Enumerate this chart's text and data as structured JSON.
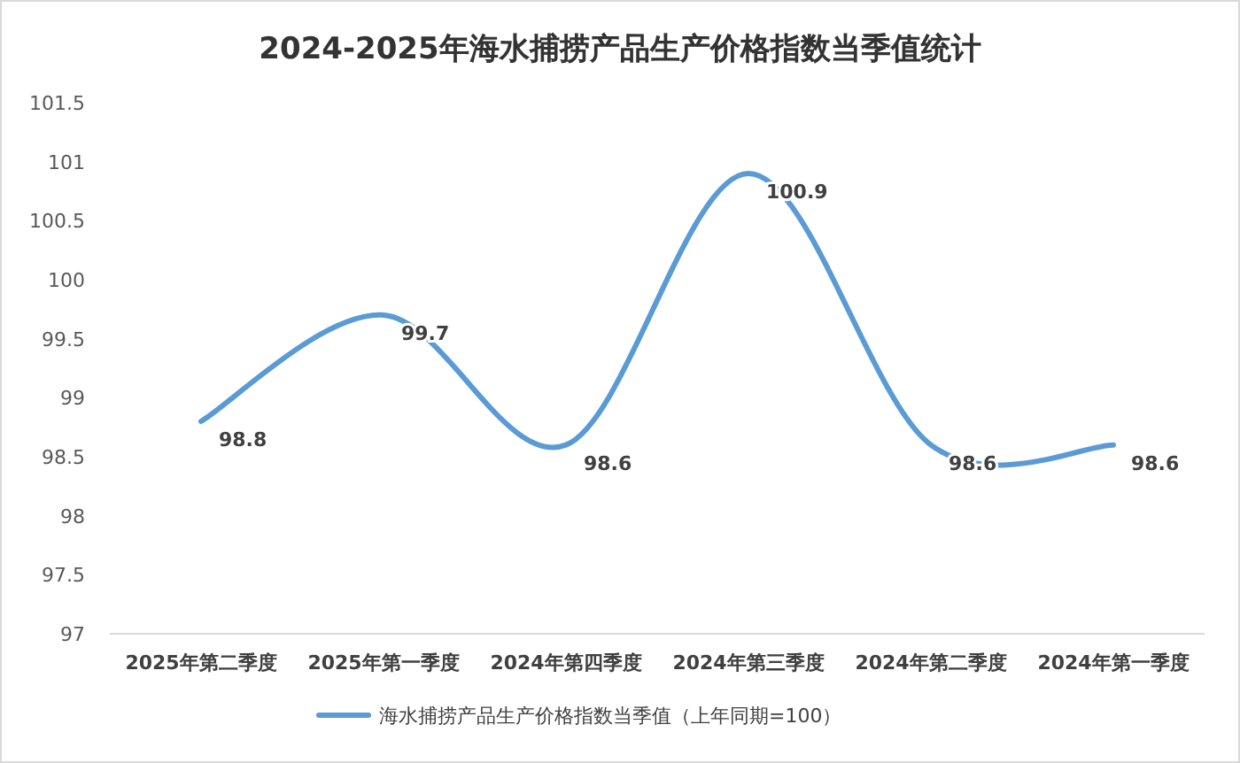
{
  "chart_data": {
    "type": "line",
    "title": "2024-2025年海水捕捞产品生产价格指数当季值统计",
    "categories": [
      "2025年第二季度",
      "2025年第一季度",
      "2024年第四季度",
      "2024年第三季度",
      "2024年第二季度",
      "2024年第一季度"
    ],
    "series": [
      {
        "name": "海水捕捞产品生产价格指数当季值（上年同期=100）",
        "color": "#5b9bd5",
        "values": [
          98.8,
          99.7,
          98.6,
          100.9,
          98.6,
          98.6
        ]
      }
    ],
    "ylim": [
      97,
      101.5
    ],
    "yticks": [
      97,
      97.5,
      98,
      98.5,
      99,
      99.5,
      100,
      100.5,
      101,
      101.5
    ],
    "data_labels": true,
    "legend": "bottom"
  }
}
